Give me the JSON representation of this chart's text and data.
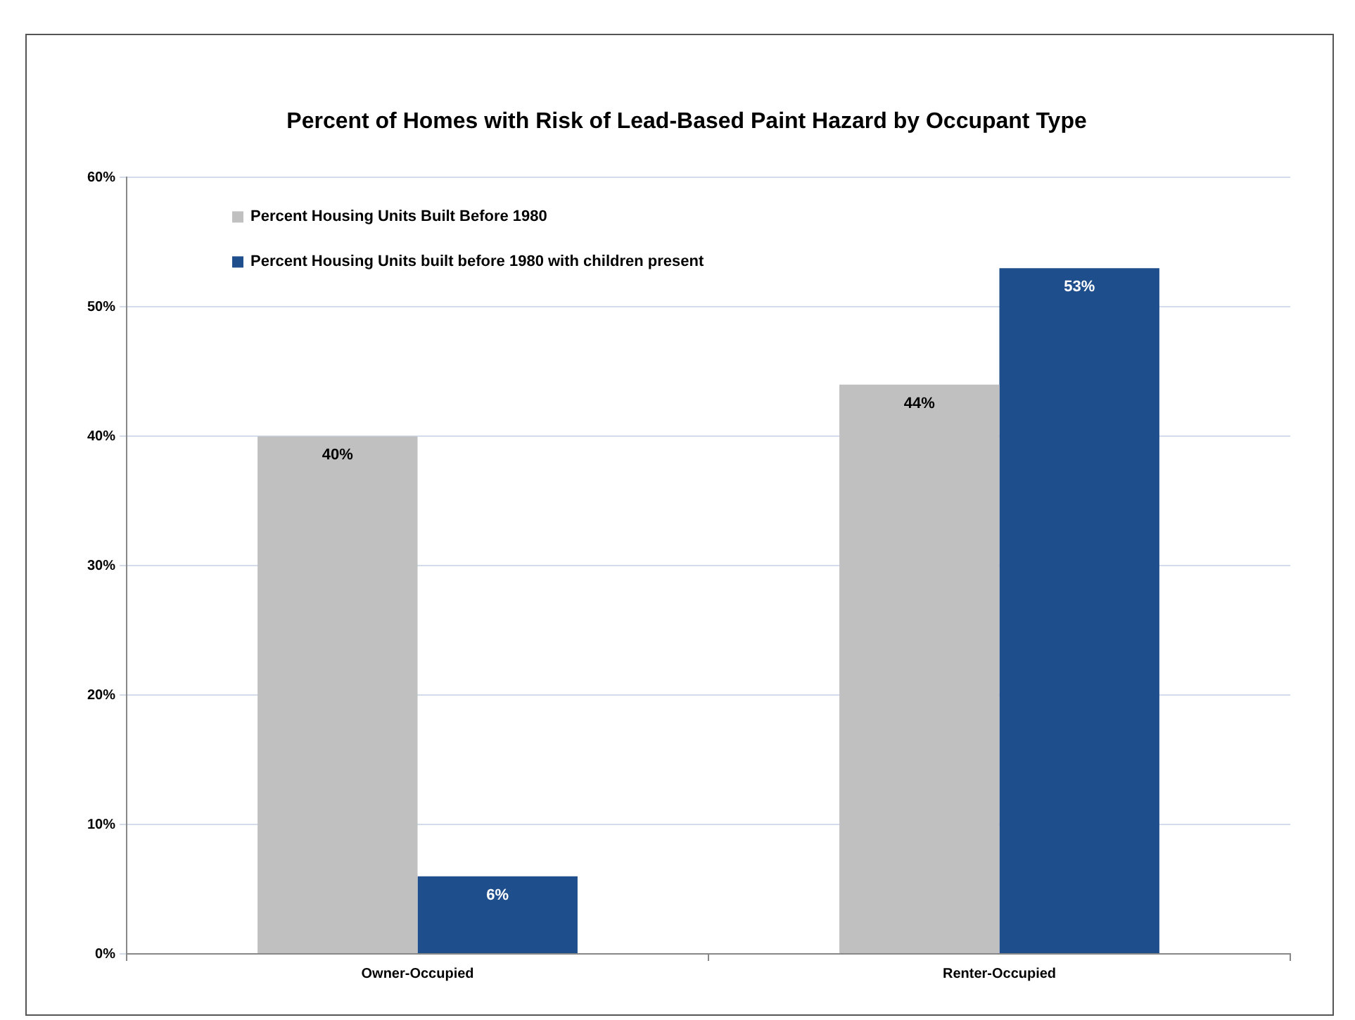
{
  "chart_data": {
    "type": "bar",
    "title": "Percent of Homes with Risk of Lead-Based Paint Hazard by Occupant Type",
    "categories": [
      "Owner-Occupied",
      "Renter-Occupied"
    ],
    "series": [
      {
        "name": "Percent Housing Units Built Before 1980",
        "color": "#c0c0c0",
        "values": [
          40,
          44
        ],
        "value_labels": [
          "40%",
          "44%"
        ]
      },
      {
        "name": "Percent Housing Units built before 1980 with children present",
        "color": "#1f4e8c",
        "values": [
          6,
          53
        ],
        "value_labels": [
          "6%",
          "53%"
        ]
      }
    ],
    "ylim": [
      0,
      60
    ],
    "yticks": [
      {
        "value": 0,
        "label": "0%"
      },
      {
        "value": 10,
        "label": "10%"
      },
      {
        "value": 20,
        "label": "20%"
      },
      {
        "value": 30,
        "label": "30%"
      },
      {
        "value": 40,
        "label": "40%"
      },
      {
        "value": 50,
        "label": "50%"
      },
      {
        "value": 60,
        "label": "60%"
      }
    ],
    "grid": "y",
    "legend": "top left"
  }
}
